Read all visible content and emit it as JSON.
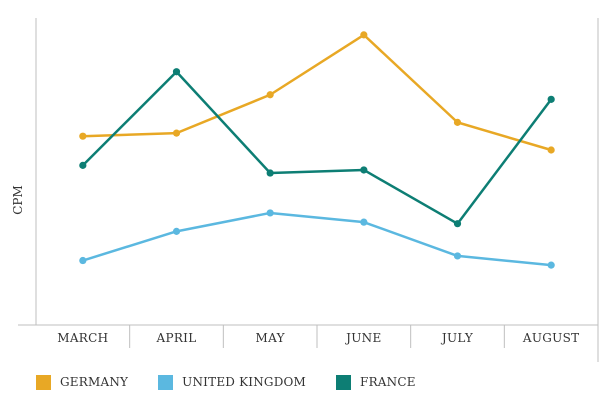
{
  "chart_data": {
    "type": "line",
    "title": "",
    "xlabel": "",
    "ylabel": "CPM",
    "categories": [
      "MARCH",
      "APRIL",
      "MAY",
      "JUNE",
      "JULY",
      "AUGUST"
    ],
    "ylim": [
      0,
      100
    ],
    "y_tick_labels_shown": false,
    "grid": false,
    "legend_position": "bottom",
    "series": [
      {
        "name": "GERMANY",
        "color": "#E8A825",
        "values": [
          61.5,
          62.5,
          75,
          94.5,
          66,
          57
        ]
      },
      {
        "name": "UNITED KINGDOM",
        "color": "#5BB8E0",
        "values": [
          21,
          30.5,
          36.5,
          33.5,
          22.5,
          19.5
        ]
      },
      {
        "name": "FRANCE",
        "color": "#0D7E74",
        "values": [
          52,
          82.5,
          49.5,
          50.5,
          33,
          73.5
        ]
      }
    ]
  }
}
